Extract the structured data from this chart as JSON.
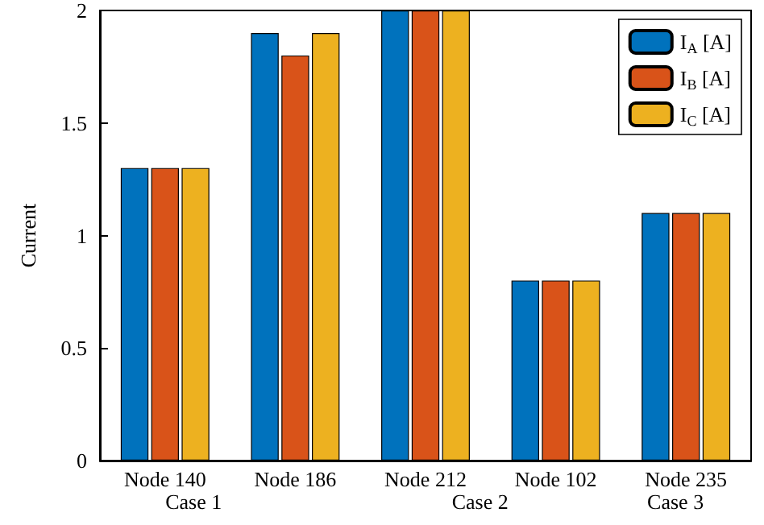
{
  "chart_data": {
    "type": "bar",
    "ylabel": "Current",
    "categories": [
      "Node 140",
      "Node 186",
      "Node 212",
      "Node 102",
      "Node 235"
    ],
    "series": [
      {
        "name": "I$_{A}$ [A]",
        "color": "#0072bd",
        "values": [
          1.3,
          1.9,
          2,
          0.8,
          1.1
        ]
      },
      {
        "name": "I$_{B}$ [A]",
        "color": "#d95319",
        "values": [
          1.3,
          1.8,
          2,
          0.8,
          1.1
        ]
      },
      {
        "name": "I$_{C}$ [A]",
        "color": "#edb120",
        "values": [
          1.3,
          1.9,
          2,
          0.8,
          1.1
        ]
      }
    ],
    "ylim": [
      0,
      2
    ],
    "yticks": [
      0,
      0.5,
      1,
      1.5,
      2
    ],
    "grid": false,
    "legend": "top right",
    "annotations": [
      "Case 1",
      "Case 2",
      "Case 3"
    ]
  }
}
